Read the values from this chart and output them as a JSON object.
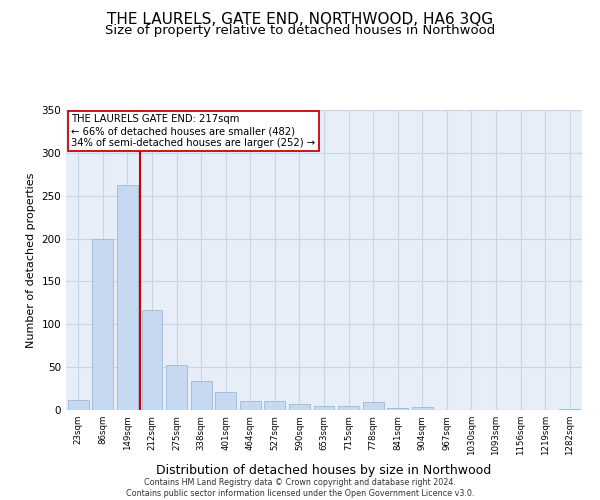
{
  "title": "THE LAURELS, GATE END, NORTHWOOD, HA6 3QG",
  "subtitle": "Size of property relative to detached houses in Northwood",
  "xlabel": "Distribution of detached houses by size in Northwood",
  "ylabel": "Number of detached properties",
  "categories": [
    "23sqm",
    "86sqm",
    "149sqm",
    "212sqm",
    "275sqm",
    "338sqm",
    "401sqm",
    "464sqm",
    "527sqm",
    "590sqm",
    "653sqm",
    "715sqm",
    "778sqm",
    "841sqm",
    "904sqm",
    "967sqm",
    "1030sqm",
    "1093sqm",
    "1156sqm",
    "1219sqm",
    "1282sqm"
  ],
  "values": [
    12,
    200,
    262,
    117,
    53,
    34,
    21,
    10,
    10,
    7,
    5,
    5,
    9,
    2,
    4,
    0,
    0,
    0,
    0,
    0,
    1
  ],
  "bar_color": "#c6d9f0",
  "bar_edge_color": "#a0b8d8",
  "vline_color": "#cc0000",
  "annotation_line1": "THE LAURELS GATE END: 217sqm",
  "annotation_line2": "← 66% of detached houses are smaller (482)",
  "annotation_line3": "34% of semi-detached houses are larger (252) →",
  "annotation_box_color": "#cc0000",
  "annotation_box_bg": "#ffffff",
  "ylim": [
    0,
    350
  ],
  "yticks": [
    0,
    50,
    100,
    150,
    200,
    250,
    300,
    350
  ],
  "grid_color": "#c8d4e8",
  "bg_color": "#e8eef8",
  "footer_line1": "Contains HM Land Registry data © Crown copyright and database right 2024.",
  "footer_line2": "Contains public sector information licensed under the Open Government Licence v3.0.",
  "title_fontsize": 11,
  "subtitle_fontsize": 9.5,
  "xlabel_fontsize": 9,
  "ylabel_fontsize": 8
}
